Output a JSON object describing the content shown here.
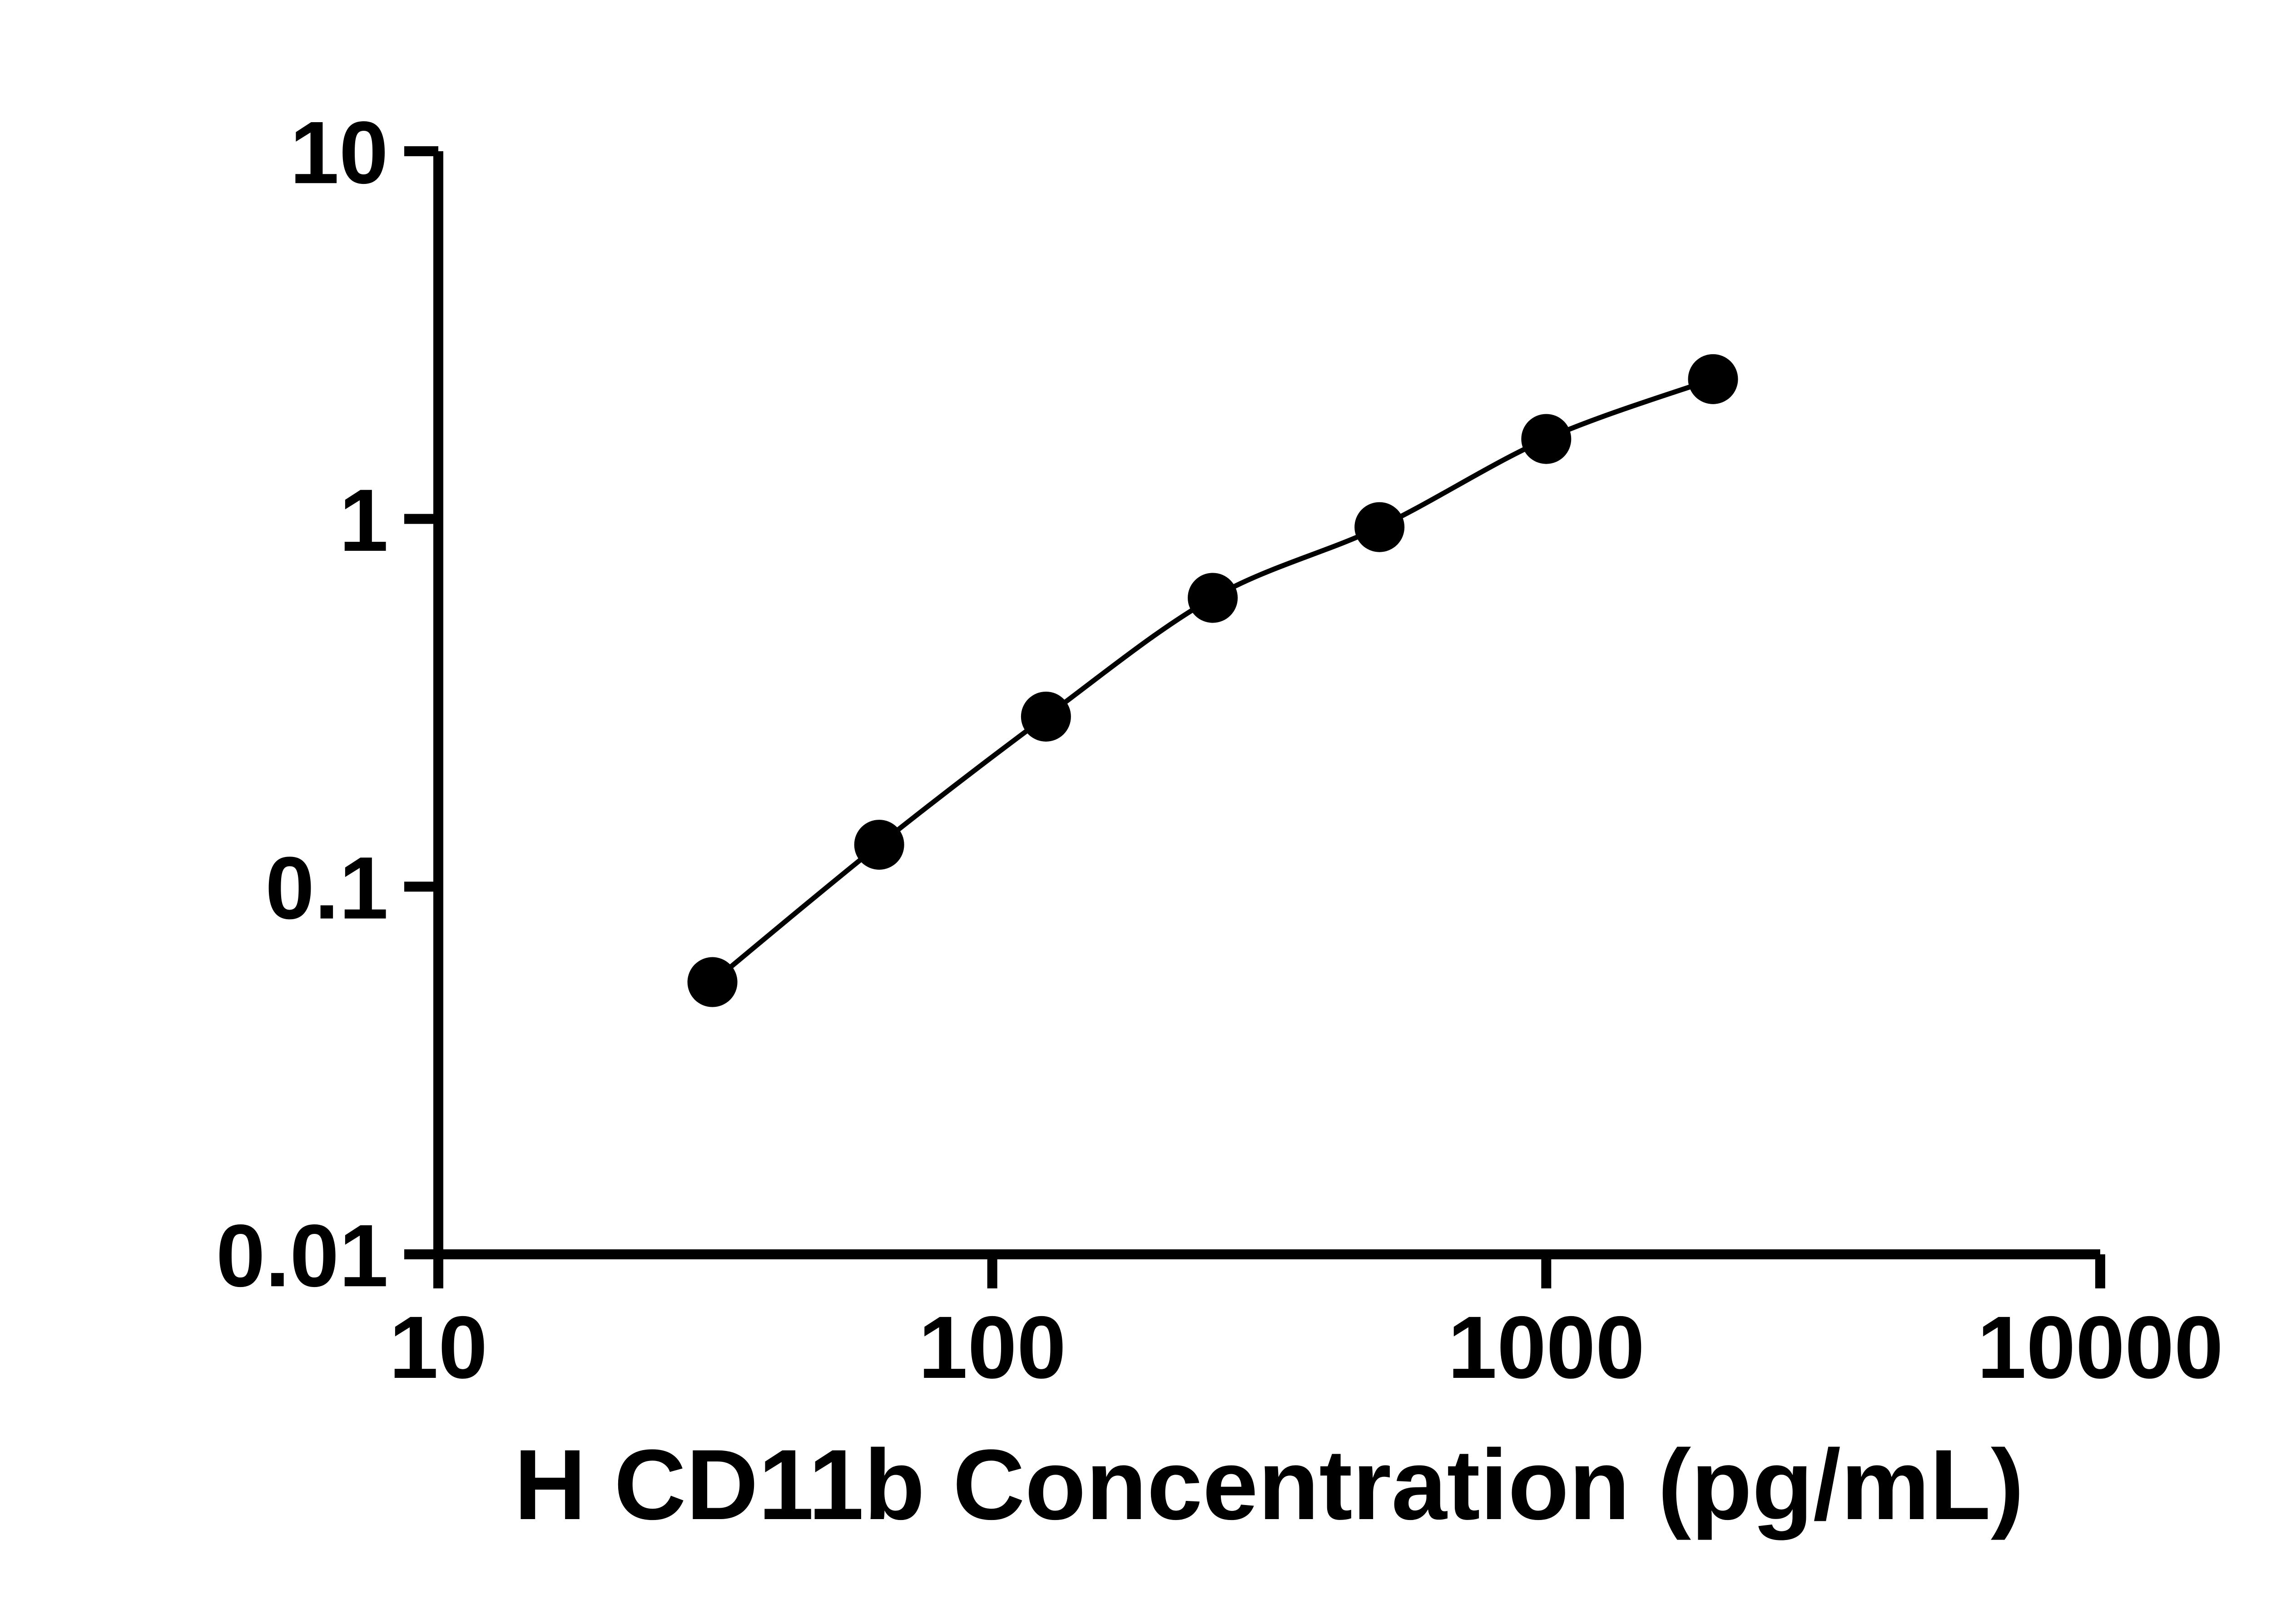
{
  "figure": {
    "background": "#ffffff",
    "foreground": "#000000"
  },
  "chart_data": {
    "type": "scatter",
    "title": "",
    "xlabel": "H CD11b Concentration (pg/mL)",
    "ylabel": "",
    "xscale": "log",
    "yscale": "log",
    "xlim": [
      10,
      10000
    ],
    "ylim": [
      0.01,
      10
    ],
    "grid": false,
    "legend": false,
    "xticks": [
      {
        "value": 10,
        "label": "10"
      },
      {
        "value": 100,
        "label": "100"
      },
      {
        "value": 1000,
        "label": "1000"
      },
      {
        "value": 10000,
        "label": "10000"
      }
    ],
    "yticks": [
      {
        "value": 10,
        "label": "10"
      },
      {
        "value": 1,
        "label": "1"
      },
      {
        "value": 0.1,
        "label": "0.1"
      },
      {
        "value": 0.01,
        "label": "0.01"
      }
    ],
    "series": [
      {
        "marker": "circle",
        "marker_color": "#000000",
        "line": "smooth",
        "line_color": "#000000",
        "points": [
          {
            "x": 31.25,
            "y": 0.055
          },
          {
            "x": 62.5,
            "y": 0.13
          },
          {
            "x": 125,
            "y": 0.29
          },
          {
            "x": 250,
            "y": 0.61
          },
          {
            "x": 500,
            "y": 0.95
          },
          {
            "x": 1000,
            "y": 1.65
          },
          {
            "x": 2000,
            "y": 2.4
          }
        ]
      }
    ]
  }
}
